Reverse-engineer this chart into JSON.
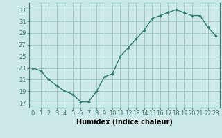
{
  "x": [
    0,
    1,
    2,
    3,
    4,
    5,
    6,
    7,
    8,
    9,
    10,
    11,
    12,
    13,
    14,
    15,
    16,
    17,
    18,
    19,
    20,
    21,
    22,
    23
  ],
  "y": [
    23,
    22.5,
    21,
    20,
    19,
    18.5,
    17.2,
    17.2,
    19,
    21.5,
    22,
    25,
    26.5,
    28,
    29.5,
    31.5,
    32,
    32.5,
    33,
    32.5,
    32,
    32,
    30,
    28.5
  ],
  "line_color": "#2e7d6e",
  "marker": "D",
  "marker_size": 2.0,
  "line_width": 1.0,
  "bg_color": "#cde8e8",
  "grid_color": "#a0c8c8",
  "xlabel": "Humidex (Indice chaleur)",
  "xlabel_fontsize": 7,
  "ylabel_ticks": [
    17,
    19,
    21,
    23,
    25,
    27,
    29,
    31,
    33
  ],
  "xtick_labels": [
    "0",
    "1",
    "2",
    "3",
    "4",
    "5",
    "6",
    "7",
    "8",
    "9",
    "10",
    "11",
    "12",
    "13",
    "14",
    "15",
    "16",
    "17",
    "18",
    "19",
    "20",
    "21",
    "22",
    "23"
  ],
  "ylim": [
    16.2,
    34.2
  ],
  "xlim": [
    -0.5,
    23.5
  ],
  "tick_fontsize": 6.0,
  "spine_color": "#3a7a6a"
}
